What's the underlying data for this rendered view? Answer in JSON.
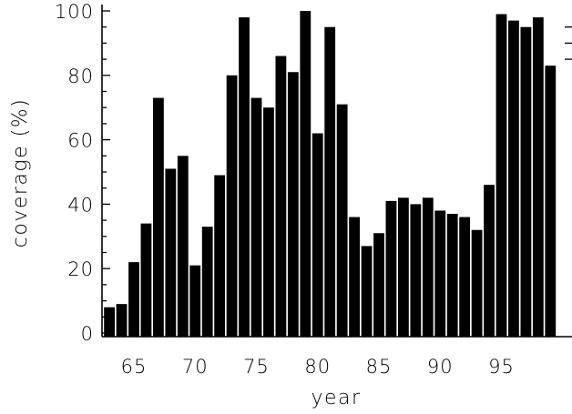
{
  "chart_data": {
    "type": "bar",
    "title": "",
    "xlabel": "year",
    "ylabel": "coverage (%)",
    "xlim": [
      62,
      99.5
    ],
    "ylim": [
      0,
      102
    ],
    "x_ticks": [
      65,
      70,
      75,
      80,
      85,
      90,
      95
    ],
    "y_ticks": [
      0,
      20,
      40,
      60,
      80,
      100
    ],
    "grid": false,
    "bar_color": "#000000",
    "categories": [
      63,
      64,
      65,
      66,
      67,
      68,
      69,
      70,
      71,
      72,
      73,
      74,
      75,
      76,
      77,
      78,
      79,
      80,
      81,
      82,
      83,
      84,
      85,
      86,
      87,
      88,
      89,
      90,
      91,
      92,
      93,
      94,
      95,
      96,
      97,
      98,
      99
    ],
    "values": [
      8,
      9,
      22,
      34,
      73,
      51,
      55,
      21,
      33,
      49,
      80,
      98,
      73,
      70,
      86,
      81,
      100,
      62,
      95,
      71,
      36,
      27,
      31,
      41,
      42,
      40,
      42,
      38,
      37,
      36,
      32,
      46,
      99,
      97,
      95,
      98,
      83
    ]
  }
}
